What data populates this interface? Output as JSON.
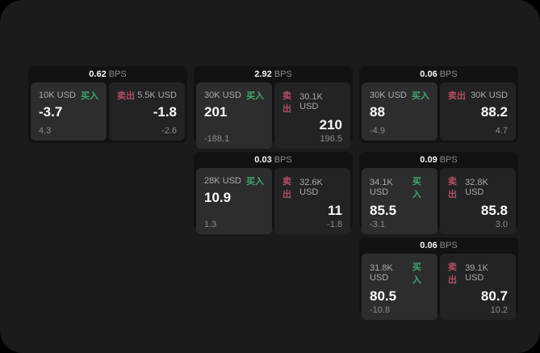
{
  "labels": {
    "buy": "买入",
    "sell": "卖出",
    "bps_unit": "BPS"
  },
  "colors": {
    "page_bg": "#000000",
    "panel_bg": "#1b1b1d",
    "card_bg": "#121214",
    "buy_panel_bg": "#2d2d2f",
    "sell_panel_bg": "#232325",
    "buy_green": "#3fa86a",
    "sell_red": "#b54d60",
    "value_white": "#fafafa",
    "muted_gray": "#8b8b90"
  },
  "cards": [
    {
      "bps": "0.62",
      "buy": {
        "amount": "10K USD",
        "value": "-3.7",
        "delta": "4.3"
      },
      "sell": {
        "amount": "5.5K USD",
        "value": "-1.8",
        "delta": "-2.6"
      },
      "col": 1,
      "row": 1
    },
    {
      "bps": "2.92",
      "buy": {
        "amount": "30K USD",
        "value": "201",
        "delta": "-188.1"
      },
      "sell": {
        "amount": "30.1K USD",
        "value": "210",
        "delta": "196.5"
      },
      "col": 2,
      "row": 1
    },
    {
      "bps": "0.06",
      "buy": {
        "amount": "30K USD",
        "value": "88",
        "delta": "-4.9"
      },
      "sell": {
        "amount": "30K USD",
        "value": "88.2",
        "delta": "4.7"
      },
      "col": 3,
      "row": 1
    },
    {
      "bps": "0.03",
      "buy": {
        "amount": "28K USD",
        "value": "10.9",
        "delta": "1.3"
      },
      "sell": {
        "amount": "32.6K USD",
        "value": "11",
        "delta": "-1.8"
      },
      "col": 2,
      "row": 2
    },
    {
      "bps": "0.09",
      "buy": {
        "amount": "34.1K USD",
        "value": "85.5",
        "delta": "-3.1"
      },
      "sell": {
        "amount": "32.8K USD",
        "value": "85.8",
        "delta": "3.0"
      },
      "col": 3,
      "row": 2
    },
    {
      "bps": "0.06",
      "buy": {
        "amount": "31.8K USD",
        "value": "80.5",
        "delta": "-10.8"
      },
      "sell": {
        "amount": "39.1K USD",
        "value": "80.7",
        "delta": "10.2"
      },
      "col": 3,
      "row": 3
    }
  ]
}
